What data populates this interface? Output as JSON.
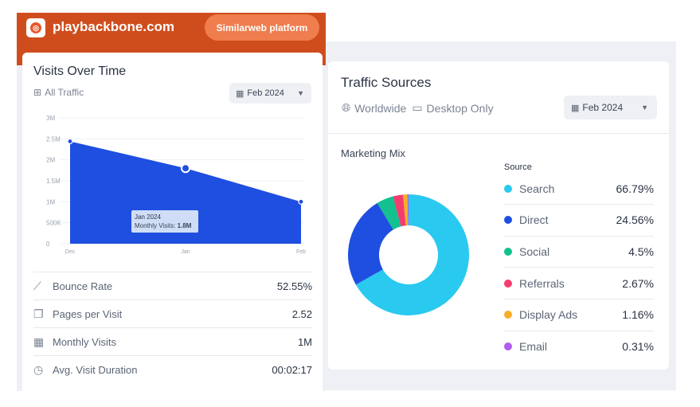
{
  "header": {
    "logo_icon": "playbackbone-logo-icon",
    "site_name": "playbackbone.com",
    "platform_button": "Similarweb platform",
    "bg_color": "#cf4d1d"
  },
  "visits_card": {
    "title": "Visits Over Time",
    "traffic_filter": "All Traffic",
    "traffic_icon": "traffic-channels-icon",
    "date_dropdown": "Feb 2024",
    "chart_data": {
      "type": "area",
      "x": [
        "Dec",
        "Jan",
        "Feb"
      ],
      "y": [
        2440000,
        1800000,
        1000000
      ],
      "yticks": [
        "3M",
        "2.5M",
        "2M",
        "1.5M",
        "1M",
        "500K",
        "0"
      ],
      "ylim": [
        0,
        3000000
      ],
      "color": "#1f4fe0",
      "tooltip": {
        "title": "Jan 2024",
        "label": "Monthly Visits:",
        "value": "1.8M"
      }
    },
    "metrics": [
      {
        "icon": "trend-icon",
        "label": "Bounce Rate",
        "value": "52.55%"
      },
      {
        "icon": "pages-icon",
        "label": "Pages per Visit",
        "value": "2.52"
      },
      {
        "icon": "calendar-icon",
        "label": "Monthly Visits",
        "value": "1M"
      },
      {
        "icon": "stopwatch-icon",
        "label": "Avg. Visit Duration",
        "value": "00:02:17"
      }
    ]
  },
  "sources_card": {
    "title": "Traffic Sources",
    "region": "Worldwide",
    "device": "Desktop Only",
    "date_dropdown": "Feb 2024",
    "subtitle": "Marketing Mix",
    "legend_header": "Source",
    "chart_data": {
      "type": "pie",
      "categories": [
        "Search",
        "Direct",
        "Social",
        "Referrals",
        "Display Ads",
        "Email"
      ],
      "values": [
        66.79,
        24.56,
        4.5,
        2.67,
        1.16,
        0.31
      ],
      "labels": [
        "66.79%",
        "24.56%",
        "4.5%",
        "2.67%",
        "1.16%",
        "0.31%"
      ],
      "colors": [
        "#2ac9f0",
        "#1f4fe0",
        "#13c08f",
        "#f23d6e",
        "#f9ae27",
        "#b25df0"
      ]
    }
  }
}
